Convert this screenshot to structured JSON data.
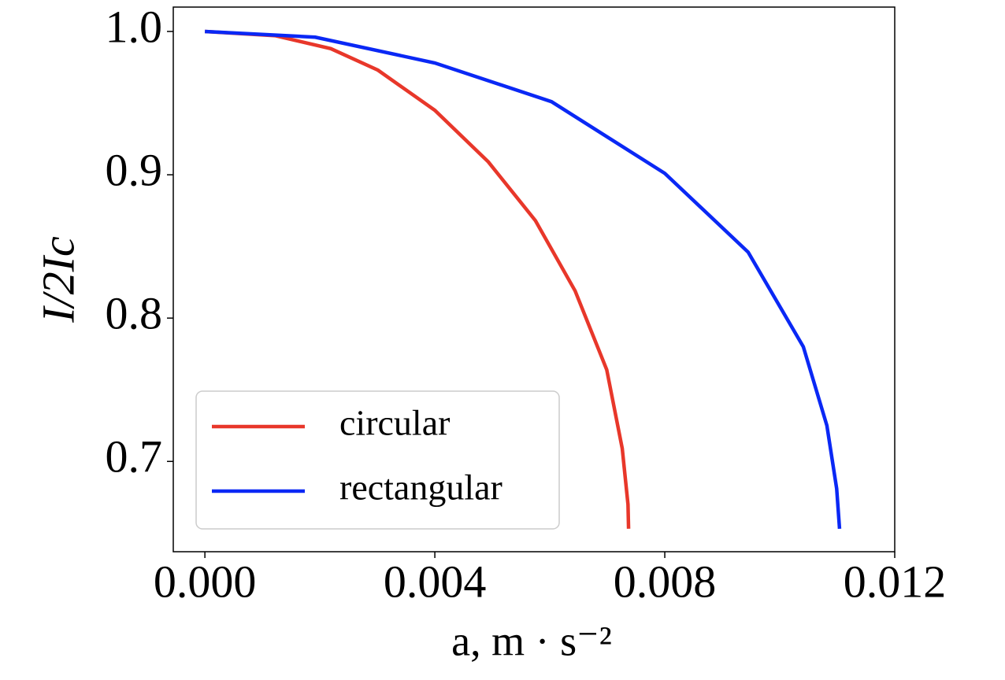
{
  "chart_data": {
    "type": "line",
    "xlabel": "a,  m · s⁻²",
    "ylabel": "I/2Ic",
    "xlim": [
      -0.00055,
      0.012
    ],
    "ylim": [
      0.637,
      1.017
    ],
    "xticks": [
      {
        "value": 0,
        "label": "0.000"
      },
      0.004,
      0.008,
      0.012
    ],
    "yticks": [
      {
        "value": 1,
        "label": "1.0"
      },
      0.9,
      0.8,
      0.7
    ],
    "legend": "lower left",
    "series": [
      {
        "name": "circular",
        "color": "#e8372a",
        "x": [
          0,
          0.00123,
          0.00219,
          0.00301,
          0.004,
          0.00493,
          0.00575,
          0.00644,
          0.00699,
          0.00726,
          0.00736,
          0.00737
        ],
        "values": [
          1.0,
          0.997,
          0.988,
          0.973,
          0.945,
          0.909,
          0.868,
          0.819,
          0.764,
          0.709,
          0.67,
          0.653
        ]
      },
      {
        "name": "rectangular",
        "color": "#0a28f5",
        "x": [
          0,
          0.00192,
          0.004,
          0.00603,
          0.008,
          0.00945,
          0.01041,
          0.01082,
          0.01099,
          0.01104
        ],
        "values": [
          1.0,
          0.996,
          0.978,
          0.951,
          0.901,
          0.846,
          0.78,
          0.725,
          0.681,
          0.653
        ]
      }
    ]
  }
}
